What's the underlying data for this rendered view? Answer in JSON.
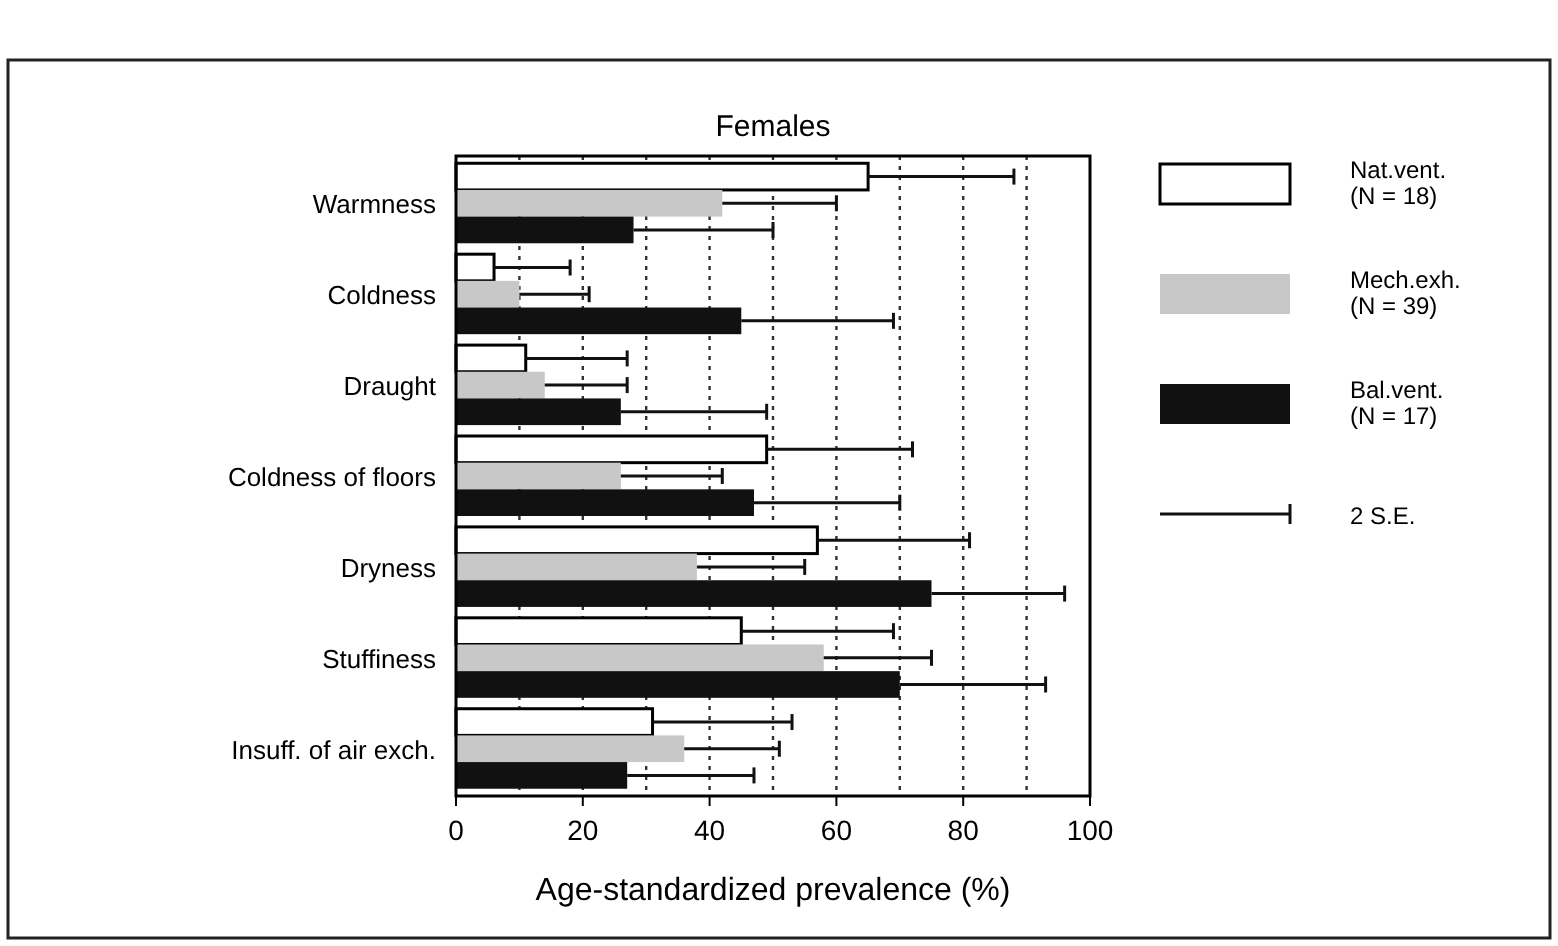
{
  "chart_data": {
    "type": "bar",
    "orientation": "horizontal",
    "title": "Females",
    "xlabel": "Age-standardized prevalence (%)",
    "categories": [
      "Warmness",
      "Coldness",
      "Draught",
      "Coldness of floors",
      "Dryness",
      "Stuffiness",
      "Insuff. of air exch."
    ],
    "series": [
      {
        "name": "Nat.vent.\n(N = 18)",
        "color": "#ffffff",
        "values": [
          65,
          6,
          11,
          49,
          57,
          45,
          31
        ],
        "errors": [
          [
            65,
            88
          ],
          [
            6,
            18
          ],
          [
            11,
            27
          ],
          [
            49,
            72
          ],
          [
            57,
            81
          ],
          [
            45,
            69
          ],
          [
            31,
            53
          ]
        ]
      },
      {
        "name": "Mech.exh.\n(N = 39)",
        "color": "#c8c8c8",
        "values": [
          42,
          10,
          14,
          26,
          38,
          58,
          36
        ],
        "errors": [
          [
            42,
            60
          ],
          [
            10,
            21
          ],
          [
            14,
            27
          ],
          [
            26,
            42
          ],
          [
            38,
            55
          ],
          [
            58,
            75
          ],
          [
            36,
            51
          ]
        ]
      },
      {
        "name": "Bal.vent.\n(N = 17)",
        "color": "#111111",
        "values": [
          28,
          45,
          26,
          47,
          75,
          70,
          27
        ],
        "errors": [
          [
            28,
            50
          ],
          [
            45,
            69
          ],
          [
            26,
            49
          ],
          [
            47,
            70
          ],
          [
            75,
            96
          ],
          [
            70,
            93
          ],
          [
            27,
            47
          ]
        ]
      }
    ],
    "xlim": [
      0,
      100
    ],
    "xticks": [
      0,
      20,
      40,
      60,
      80,
      100
    ],
    "grid": "x",
    "legend": "right",
    "annotations": [
      "2 S.E."
    ]
  }
}
